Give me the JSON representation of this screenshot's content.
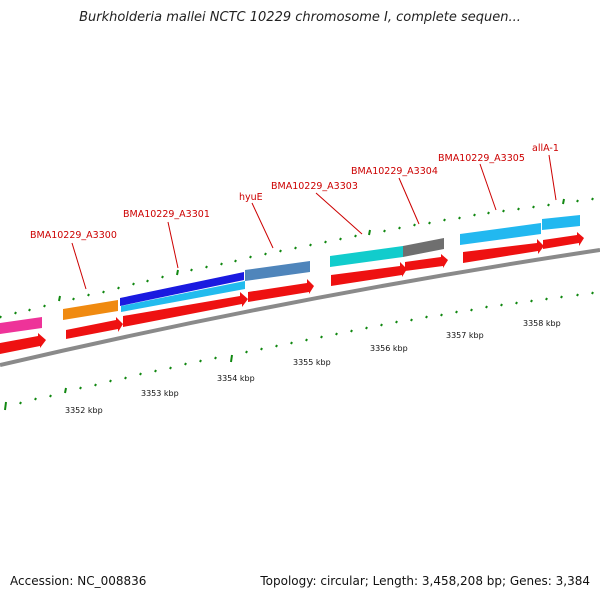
{
  "title": "Burkholderia mallei NCTC 10229 chromosome I, complete sequen...",
  "footer": {
    "accession": "Accession: NC_008836",
    "summary": "Topology: circular; Length: 3,458,208 bp; Genes: 3,384"
  },
  "colors": {
    "cds_red": "#ee1111",
    "backbone": "#777777",
    "tick_green": "#118811",
    "label_red": "#cc0000"
  },
  "gene_labels": [
    "BMA10229_A3300",
    "BMA10229_A3301",
    "hyuE",
    "BMA10229_A3303",
    "BMA10229_A3304",
    "BMA10229_A3305",
    "allA-1"
  ],
  "scale_labels": [
    "3352 kbp",
    "3353 kbp",
    "3354 kbp",
    "3355 kbp",
    "3356 kbp",
    "3357 kbp",
    "3358 kbp"
  ]
}
